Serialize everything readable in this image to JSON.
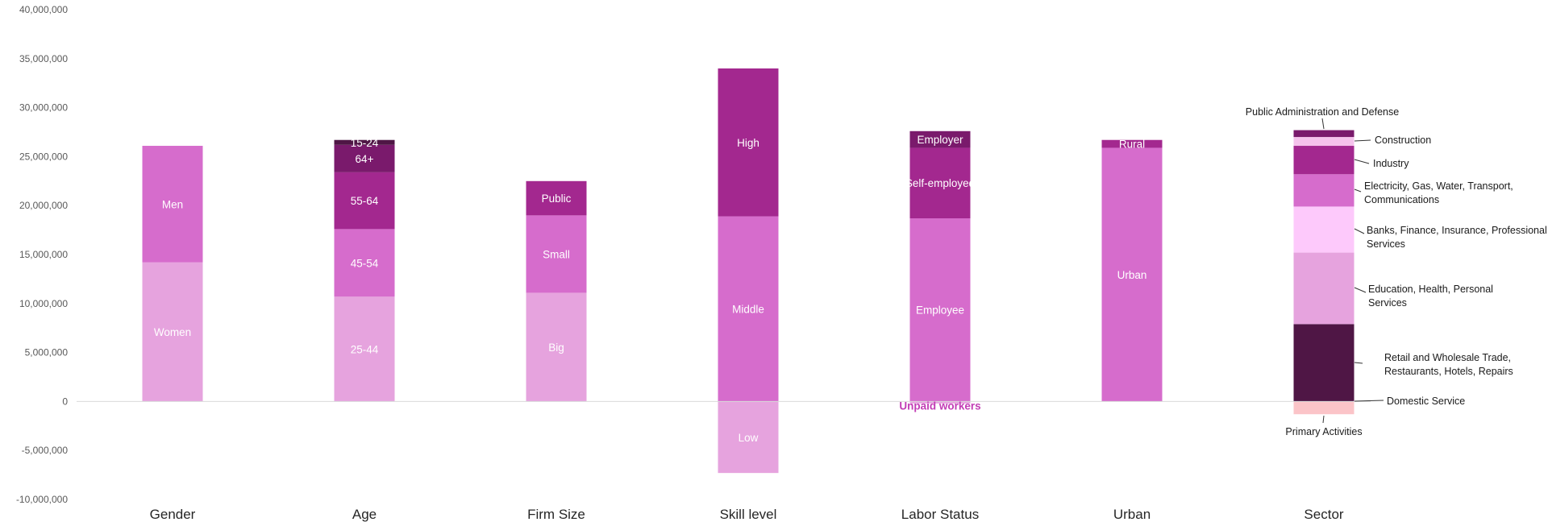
{
  "chart_data": {
    "type": "bar",
    "stacked": true,
    "ylim": [
      -10000000,
      40000000
    ],
    "yticks": [
      -10000000,
      -5000000,
      0,
      5000000,
      10000000,
      15000000,
      20000000,
      25000000,
      30000000,
      35000000,
      40000000
    ],
    "ytick_labels": [
      "-10,000,000",
      "-5,000,000",
      "0",
      "5,000,000",
      "10,000,000",
      "15,000,000",
      "20,000,000",
      "25,000,000",
      "30,000,000",
      "35,000,000",
      "40,000,000"
    ],
    "categories": [
      "Gender",
      "Age",
      "Firm Size",
      "Skill level",
      "Labor Status",
      "Urban",
      "Sector"
    ],
    "grid": false,
    "stacks": [
      {
        "category": "Gender",
        "segments": [
          {
            "label": "Women",
            "value": 14200000,
            "color": "#e6a3de",
            "label_color": "#ffffff"
          },
          {
            "label": "Men",
            "value": 11900000,
            "color": "#d66ccc",
            "label_color": "#ffffff"
          }
        ]
      },
      {
        "category": "Age",
        "segments": [
          {
            "label": "25-44",
            "value": 10700000,
            "color": "#e6a3de",
            "label_color": "#ffffff"
          },
          {
            "label": "45-54",
            "value": 6900000,
            "color": "#d66ccc",
            "label_color": "#ffffff"
          },
          {
            "label": "55-64",
            "value": 5800000,
            "color": "#a3288f",
            "label_color": "#ffffff"
          },
          {
            "label": "64+",
            "value": 2800000,
            "color": "#7a1a6c",
            "label_color": "#ffffff"
          },
          {
            "label": "15-24",
            "value": 500000,
            "color": "#4f1645",
            "label_color": "#ffffff"
          }
        ]
      },
      {
        "category": "Firm Size",
        "segments": [
          {
            "label": "Big",
            "value": 11100000,
            "color": "#e6a3de",
            "label_color": "#ffffff"
          },
          {
            "label": "Small",
            "value": 7900000,
            "color": "#d66ccc",
            "label_color": "#ffffff"
          },
          {
            "label": "Public",
            "value": 3500000,
            "color": "#a3288f",
            "label_color": "#ffffff"
          }
        ]
      },
      {
        "category": "Skill level",
        "segments": [
          {
            "label": "Low",
            "value": -7300000,
            "color": "#e6a3de",
            "label_color": "#ffffff"
          },
          {
            "label": "Middle",
            "value": 18900000,
            "color": "#d66ccc",
            "label_color": "#ffffff"
          },
          {
            "label": "High",
            "value": 15100000,
            "color": "#a3288f",
            "label_color": "#ffffff"
          }
        ]
      },
      {
        "category": "Labor Status",
        "segments": [
          {
            "label": "Unpaid workers",
            "value": -200000,
            "color": "#e6a3de",
            "label_color": "#c23db5"
          },
          {
            "label": "Employee",
            "value": 18700000,
            "color": "#d66ccc",
            "label_color": "#ffffff"
          },
          {
            "label": "Self-employed",
            "value": 7200000,
            "color": "#a3288f",
            "label_color": "#ffffff"
          },
          {
            "label": "Employer",
            "value": 1700000,
            "color": "#7a1a6c",
            "label_color": "#ffffff"
          }
        ]
      },
      {
        "category": "Urban",
        "segments": [
          {
            "label": "Urban",
            "value": 25900000,
            "color": "#d66ccc",
            "label_color": "#ffffff"
          },
          {
            "label": "Rural",
            "value": 800000,
            "color": "#a3288f",
            "label_color": "#ffffff"
          }
        ]
      },
      {
        "category": "Sector",
        "segments": [
          {
            "label": "Primary Activities",
            "value": -1300000,
            "color": "#fbc4c8"
          },
          {
            "label": "Domestic Service",
            "value": 0,
            "color": "#fbc4c8"
          },
          {
            "label": "Retail and Wholesale Trade, Restaurants, Hotels, Repairs",
            "value": 7900000,
            "color": "#4f1645"
          },
          {
            "label": "Education, Health, Personal Services",
            "value": 7300000,
            "color": "#e6a3de"
          },
          {
            "label": "Banks, Finance, Insurance, Professional Services",
            "value": 4700000,
            "color": "#fdc9fb"
          },
          {
            "label": "Electricity, Gas, Water, Transport, Communications",
            "value": 3300000,
            "color": "#d66ccc"
          },
          {
            "label": "Industry",
            "value": 2900000,
            "color": "#a3288f"
          },
          {
            "label": "Construction",
            "value": 900000,
            "color": "#f5c2ec"
          },
          {
            "label": "Public Administration and Defense",
            "value": 700000,
            "color": "#7a1a6c"
          }
        ]
      }
    ],
    "sector_annotations": [
      {
        "lines": [
          "Public Administration and Defense"
        ]
      },
      {
        "lines": [
          "Construction"
        ]
      },
      {
        "lines": [
          "Industry"
        ]
      },
      {
        "lines": [
          "Electricity, Gas, Water, Transport,",
          "Communications"
        ]
      },
      {
        "lines": [
          "Banks, Finance, Insurance, Professional",
          "Services"
        ]
      },
      {
        "lines": [
          "Education, Health, Personal",
          "Services"
        ]
      },
      {
        "lines": [
          "Retail and Wholesale Trade,",
          "Restaurants, Hotels, Repairs"
        ]
      },
      {
        "lines": [
          "Domestic Service"
        ]
      },
      {
        "lines": [
          "Primary Activities"
        ]
      }
    ]
  }
}
